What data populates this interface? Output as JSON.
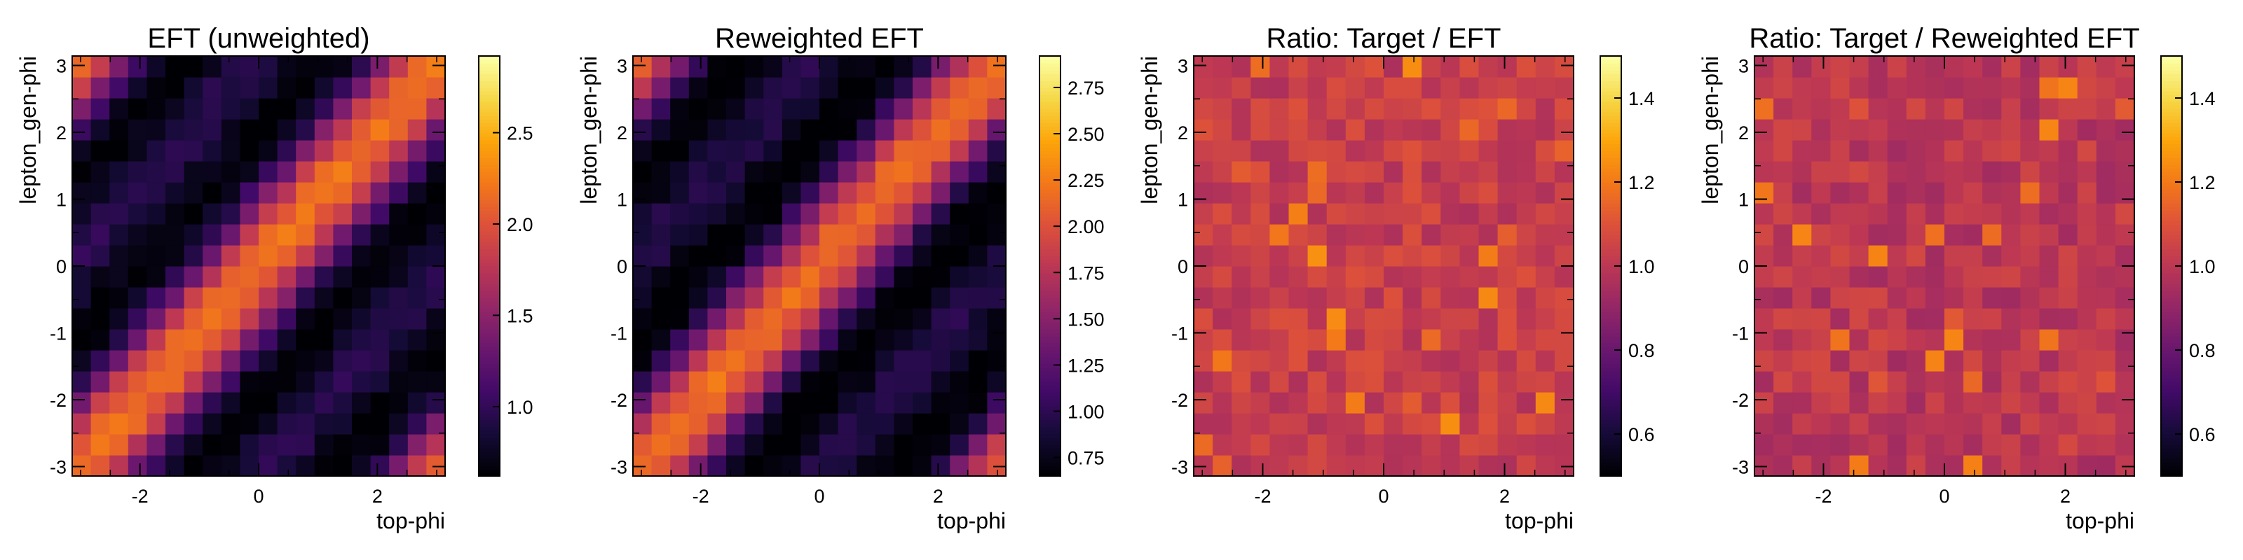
{
  "chart_data": [
    {
      "type": "heatmap",
      "title": "EFT (unweighted)",
      "xlabel": "top-phi",
      "ylabel": "lepton_gen-phi",
      "xlim": [
        -3.1416,
        3.1416
      ],
      "ylim": [
        -3.1416,
        3.1416
      ],
      "nbins": 20,
      "x_ticks": [
        "-2",
        "0",
        "2"
      ],
      "y_ticks": [
        "-3",
        "-2",
        "-1",
        "0",
        "1",
        "2",
        "3"
      ],
      "colorbar": {
        "vmin": 0.62,
        "vmax": 2.92,
        "ticks": [
          "1.0",
          "1.5",
          "2.0",
          "2.5"
        ],
        "tick_values": [
          1.0,
          1.5,
          2.0,
          2.5
        ]
      },
      "colormap": "inferno",
      "seed": 11,
      "pattern": "correlation",
      "description_values": {
        "diagonal_peak": 2.75,
        "anti_diagonal_min": 0.68,
        "mean": 1.15
      }
    },
    {
      "type": "heatmap",
      "title": "Reweighted EFT",
      "xlabel": "top-phi",
      "ylabel": "lepton_gen-phi",
      "xlim": [
        -3.1416,
        3.1416
      ],
      "ylim": [
        -3.1416,
        3.1416
      ],
      "nbins": 20,
      "x_ticks": [
        "-2",
        "0",
        "2"
      ],
      "y_ticks": [
        "-3",
        "-2",
        "-1",
        "0",
        "1",
        "2",
        "3"
      ],
      "colorbar": {
        "vmin": 0.65,
        "vmax": 2.92,
        "ticks": [
          "0.75",
          "1.00",
          "1.25",
          "1.50",
          "1.75",
          "2.00",
          "2.25",
          "2.50",
          "2.75"
        ],
        "tick_values": [
          0.75,
          1.0,
          1.25,
          1.5,
          1.75,
          2.0,
          2.25,
          2.5,
          2.75
        ]
      },
      "colormap": "inferno",
      "seed": 23,
      "pattern": "correlation",
      "description_values": {
        "diagonal_peak": 2.8,
        "anti_diagonal_min": 0.68,
        "mean": 1.15
      }
    },
    {
      "type": "heatmap",
      "title": "Ratio: Target / EFT",
      "xlabel": "top-phi",
      "ylabel": "lepton_gen-phi",
      "xlim": [
        -3.1416,
        3.1416
      ],
      "ylim": [
        -3.1416,
        3.1416
      ],
      "nbins": 20,
      "x_ticks": [
        "-2",
        "0",
        "2"
      ],
      "y_ticks": [
        "-3",
        "-2",
        "-1",
        "0",
        "1",
        "2",
        "3"
      ],
      "colorbar": {
        "vmin": 0.5,
        "vmax": 1.5,
        "ticks": [
          "0.6",
          "0.8",
          "1.0",
          "1.2",
          "1.4"
        ],
        "tick_values": [
          0.6,
          0.8,
          1.0,
          1.2,
          1.4
        ]
      },
      "colormap": "inferno",
      "seed": 37,
      "pattern": "ratio",
      "description_values": {
        "mean": 1.03,
        "spread": 0.07
      }
    },
    {
      "type": "heatmap",
      "title": "Ratio: Target / Reweighted EFT",
      "xlabel": "top-phi",
      "ylabel": "lepton_gen-phi",
      "xlim": [
        -3.1416,
        3.1416
      ],
      "ylim": [
        -3.1416,
        3.1416
      ],
      "nbins": 20,
      "x_ticks": [
        "-2",
        "0",
        "2"
      ],
      "y_ticks": [
        "-3",
        "-2",
        "-1",
        "0",
        "1",
        "2",
        "3"
      ],
      "colorbar": {
        "vmin": 0.5,
        "vmax": 1.5,
        "ticks": [
          "0.6",
          "0.8",
          "1.0",
          "1.2",
          "1.4"
        ],
        "tick_values": [
          0.6,
          0.8,
          1.0,
          1.2,
          1.4
        ]
      },
      "colormap": "inferno",
      "seed": 53,
      "pattern": "ratio",
      "description_values": {
        "mean": 1.0,
        "spread": 0.07
      }
    }
  ]
}
